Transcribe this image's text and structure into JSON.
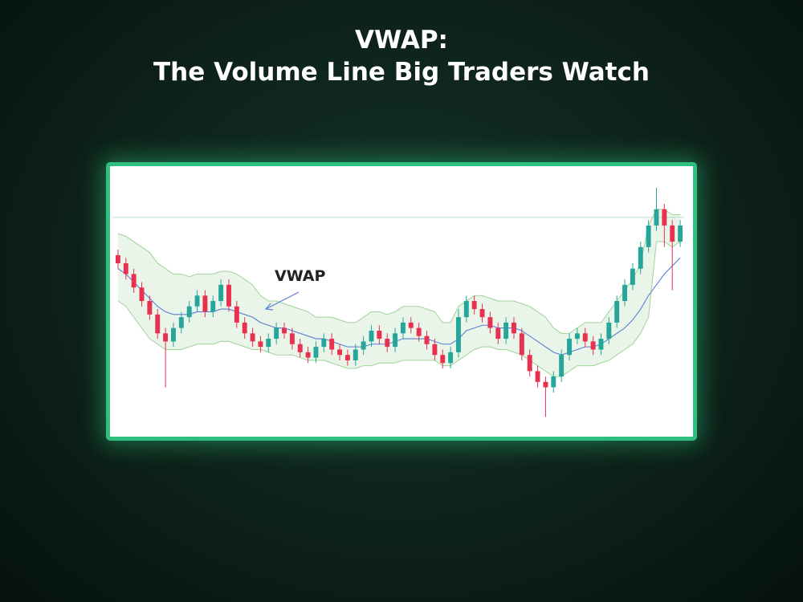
{
  "header": {
    "title_lines": [
      "VWAP:",
      "The Volume Line Big Traders Watch"
    ]
  },
  "chart_data": {
    "type": "candlestick",
    "annotation": "VWAP",
    "up_color": "#26a69a",
    "down_color": "#e8304f",
    "vwap_color": "#5b7fd6",
    "band_color": "#9fd39a",
    "reference_color": "#b8dccb",
    "ylim": [
      0,
      100
    ],
    "reference_line": 81,
    "categories": [
      null,
      null,
      null,
      null,
      null,
      null,
      null,
      null,
      null,
      null,
      null,
      null,
      null,
      null,
      null,
      null,
      null,
      null,
      null,
      null,
      null,
      null,
      null,
      null,
      null,
      null,
      null,
      null,
      null,
      null,
      null,
      null,
      null,
      null,
      null,
      null,
      null,
      null,
      null,
      null,
      null,
      null,
      null,
      null,
      null,
      null,
      null,
      null,
      null,
      null,
      null,
      null,
      null,
      null,
      null,
      null,
      null,
      null,
      null,
      null,
      null,
      null,
      null,
      null,
      null,
      null,
      null,
      null,
      null,
      null,
      null,
      null
    ],
    "open": [
      67,
      64,
      60,
      55,
      50,
      45,
      38,
      35,
      40,
      44,
      48,
      52,
      46,
      50,
      56,
      48,
      42,
      38,
      35,
      33,
      36,
      40,
      38,
      34,
      31,
      29,
      33,
      36,
      32,
      30,
      28,
      32,
      35,
      39,
      36,
      33,
      38,
      42,
      40,
      37,
      34,
      30,
      27,
      31,
      44,
      50,
      47,
      44,
      40,
      36,
      42,
      38,
      30,
      24,
      20,
      18,
      22,
      30,
      36,
      38,
      35,
      32,
      36,
      42,
      50,
      56,
      62,
      70,
      78,
      84,
      78,
      72
    ],
    "high": [
      69,
      66,
      62,
      57,
      52,
      47,
      40,
      42,
      46,
      50,
      54,
      54,
      52,
      58,
      58,
      50,
      44,
      40,
      37,
      38,
      42,
      42,
      40,
      36,
      33,
      35,
      38,
      38,
      34,
      32,
      34,
      37,
      41,
      41,
      38,
      40,
      44,
      44,
      42,
      39,
      36,
      32,
      33,
      47,
      52,
      52,
      49,
      46,
      42,
      44,
      44,
      40,
      32,
      26,
      22,
      24,
      32,
      38,
      40,
      40,
      37,
      38,
      44,
      52,
      58,
      64,
      72,
      80,
      92,
      86,
      80,
      80
    ],
    "low": [
      62,
      58,
      53,
      48,
      43,
      36,
      18,
      33,
      38,
      42,
      46,
      44,
      44,
      48,
      46,
      40,
      36,
      33,
      31,
      31,
      34,
      36,
      32,
      29,
      27,
      27,
      31,
      30,
      28,
      26,
      26,
      30,
      33,
      34,
      31,
      31,
      36,
      38,
      35,
      32,
      28,
      25,
      25,
      29,
      42,
      45,
      42,
      38,
      34,
      34,
      36,
      28,
      22,
      18,
      7,
      16,
      20,
      28,
      34,
      33,
      30,
      30,
      34,
      40,
      48,
      54,
      60,
      68,
      76,
      70,
      54,
      70
    ],
    "close": [
      64,
      60,
      55,
      50,
      45,
      38,
      35,
      40,
      44,
      48,
      52,
      46,
      50,
      56,
      48,
      42,
      38,
      35,
      33,
      36,
      40,
      38,
      34,
      31,
      29,
      33,
      36,
      32,
      30,
      28,
      32,
      35,
      39,
      36,
      33,
      38,
      42,
      40,
      37,
      34,
      30,
      27,
      31,
      44,
      50,
      47,
      44,
      40,
      36,
      42,
      38,
      30,
      24,
      20,
      18,
      22,
      30,
      36,
      38,
      35,
      32,
      36,
      42,
      50,
      56,
      62,
      70,
      78,
      84,
      78,
      72,
      78
    ],
    "vwap": [
      62,
      60,
      57,
      54,
      51,
      48,
      46,
      45,
      45,
      45,
      46,
      46,
      46,
      47,
      47,
      46,
      45,
      44,
      42,
      41,
      40,
      40,
      39,
      38,
      37,
      36,
      36,
      35,
      34,
      33,
      33,
      33,
      34,
      34,
      34,
      35,
      36,
      36,
      36,
      36,
      35,
      34,
      34,
      36,
      39,
      40,
      41,
      41,
      40,
      40,
      40,
      39,
      37,
      35,
      33,
      31,
      30,
      31,
      32,
      33,
      33,
      34,
      36,
      38,
      40,
      43,
      47,
      52,
      56,
      60,
      63,
      66
    ],
    "upper_band": [
      75,
      74,
      72,
      70,
      68,
      64,
      62,
      60,
      60,
      59,
      60,
      60,
      60,
      61,
      61,
      60,
      58,
      56,
      52,
      50,
      50,
      49,
      48,
      47,
      46,
      44,
      44,
      44,
      43,
      42,
      42,
      44,
      46,
      46,
      45,
      46,
      48,
      48,
      48,
      47,
      46,
      42,
      42,
      48,
      50,
      52,
      52,
      51,
      50,
      50,
      50,
      49,
      48,
      46,
      44,
      40,
      38,
      38,
      40,
      42,
      42,
      42,
      46,
      50,
      54,
      58,
      64,
      78,
      84,
      84,
      82,
      82
    ],
    "lower_band": [
      50,
      48,
      44,
      40,
      36,
      34,
      32,
      32,
      32,
      33,
      34,
      34,
      34,
      35,
      35,
      34,
      33,
      32,
      32,
      31,
      30,
      30,
      30,
      29,
      28,
      28,
      28,
      27,
      26,
      25,
      25,
      26,
      26,
      27,
      27,
      27,
      28,
      28,
      28,
      28,
      28,
      26,
      26,
      28,
      30,
      32,
      33,
      33,
      32,
      32,
      31,
      30,
      28,
      26,
      24,
      22,
      22,
      24,
      26,
      26,
      26,
      27,
      28,
      30,
      32,
      34,
      38,
      44,
      72,
      72,
      70,
      72
    ]
  }
}
